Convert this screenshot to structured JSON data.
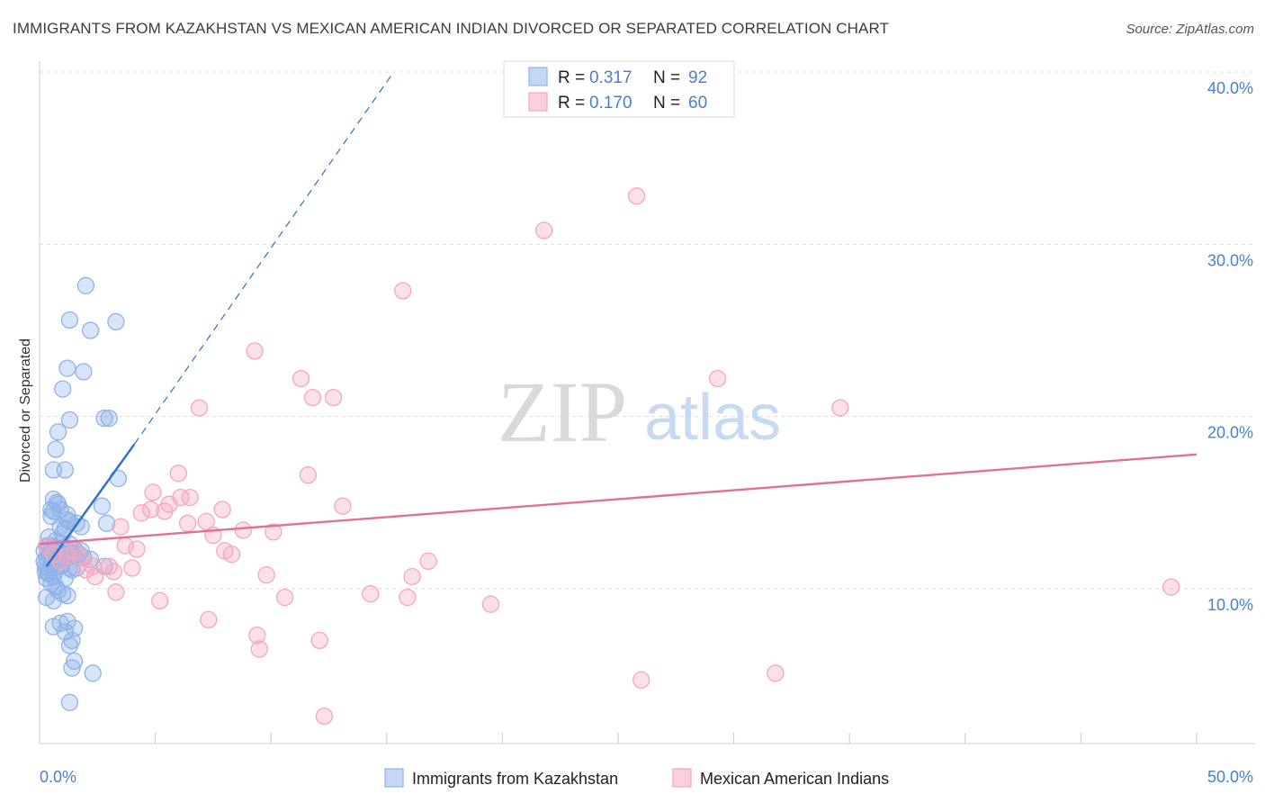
{
  "header": {
    "title": "IMMIGRANTS FROM KAZAKHSTAN VS MEXICAN AMERICAN INDIAN DIVORCED OR SEPARATED CORRELATION CHART",
    "source": "Source: ZipAtlas.com"
  },
  "watermark": {
    "zip": "ZIP",
    "atlas": "atlas"
  },
  "chart_data": {
    "type": "scatter",
    "title": "IMMIGRANTS FROM KAZAKHSTAN VS MEXICAN AMERICAN INDIAN DIVORCED OR SEPARATED CORRELATION CHART",
    "xlabel": "",
    "ylabel": "Divorced or Separated",
    "xlim": [
      0,
      50
    ],
    "ylim": [
      1.5,
      41
    ],
    "x_ticks": [
      {
        "value": 0,
        "label": "0.0%"
      },
      {
        "value": 50,
        "label": "50.0%"
      }
    ],
    "y_ticks": [
      {
        "value": 10,
        "label": "10.0%"
      },
      {
        "value": 20,
        "label": "20.0%"
      },
      {
        "value": 30,
        "label": "30.0%"
      },
      {
        "value": 40,
        "label": "40.0%"
      }
    ],
    "legend_stats": [
      {
        "r_label": "R =",
        "r_value": "0.317",
        "n_label": "N =",
        "n_value": "92"
      },
      {
        "r_label": "R =",
        "r_value": "0.170",
        "n_label": "N =",
        "n_value": "60"
      }
    ],
    "series": [
      {
        "name": "Immigrants from Kazakhstan",
        "color": "#8fb3e8",
        "line_color": "#2e6fce",
        "trend": {
          "x0": 0.3,
          "y0": 11.3,
          "x1": 4.1,
          "y1": 18.4,
          "dash_to_x": 15.3,
          "dash_to_y": 40.0
        },
        "points": [
          [
            0.2,
            12.2
          ],
          [
            0.3,
            11.8
          ],
          [
            0.25,
            11.3
          ],
          [
            0.4,
            12.5
          ],
          [
            0.35,
            10.9
          ],
          [
            0.5,
            12.0
          ],
          [
            0.6,
            11.5
          ],
          [
            0.3,
            10.6
          ],
          [
            0.45,
            11.9
          ],
          [
            0.7,
            12.3
          ],
          [
            0.8,
            11.7
          ],
          [
            0.55,
            12.4
          ],
          [
            0.65,
            11.0
          ],
          [
            0.9,
            12.1
          ],
          [
            1.0,
            11.6
          ],
          [
            0.4,
            13.0
          ],
          [
            0.6,
            14.5
          ],
          [
            0.75,
            15.0
          ],
          [
            0.5,
            14.2
          ],
          [
            1.1,
            13.5
          ],
          [
            1.2,
            14.3
          ],
          [
            0.9,
            14.6
          ],
          [
            1.3,
            13.9
          ],
          [
            1.0,
            13.2
          ],
          [
            0.7,
            12.8
          ],
          [
            0.85,
            12.0
          ],
          [
            1.4,
            12.1
          ],
          [
            1.6,
            11.2
          ],
          [
            1.5,
            11.9
          ],
          [
            1.8,
            12.2
          ],
          [
            0.3,
            9.5
          ],
          [
            0.6,
            9.3
          ],
          [
            0.8,
            9.9
          ],
          [
            1.0,
            9.7
          ],
          [
            1.2,
            9.6
          ],
          [
            0.5,
            10.3
          ],
          [
            0.7,
            10.1
          ],
          [
            1.1,
            10.6
          ],
          [
            1.3,
            11.2
          ],
          [
            0.4,
            10.9
          ],
          [
            0.6,
            10.7
          ],
          [
            0.9,
            11.3
          ],
          [
            0.6,
            7.8
          ],
          [
            0.9,
            8.0
          ],
          [
            1.2,
            8.1
          ],
          [
            1.1,
            7.5
          ],
          [
            1.5,
            7.7
          ],
          [
            1.4,
            7.0
          ],
          [
            1.3,
            6.7
          ],
          [
            1.5,
            5.8
          ],
          [
            1.4,
            5.4
          ],
          [
            2.3,
            5.1
          ],
          [
            1.3,
            3.4
          ],
          [
            0.6,
            16.9
          ],
          [
            0.7,
            18.1
          ],
          [
            0.8,
            19.1
          ],
          [
            1.1,
            16.9
          ],
          [
            1.3,
            19.8
          ],
          [
            1.0,
            21.6
          ],
          [
            1.2,
            22.8
          ],
          [
            1.9,
            22.6
          ],
          [
            1.3,
            25.6
          ],
          [
            2.2,
            25.0
          ],
          [
            3.3,
            25.5
          ],
          [
            2.0,
            27.6
          ],
          [
            2.8,
            19.9
          ],
          [
            3.0,
            19.9
          ],
          [
            3.4,
            16.4
          ],
          [
            2.7,
            14.8
          ],
          [
            2.9,
            13.8
          ],
          [
            1.8,
            13.6
          ],
          [
            1.6,
            13.8
          ],
          [
            1.2,
            14.0
          ],
          [
            0.9,
            13.6
          ],
          [
            0.5,
            14.6
          ],
          [
            0.6,
            15.2
          ],
          [
            0.8,
            14.9
          ],
          [
            1.3,
            12.6
          ],
          [
            1.5,
            12.3
          ],
          [
            1.7,
            12.0
          ],
          [
            1.9,
            11.8
          ],
          [
            2.2,
            11.7
          ],
          [
            2.8,
            11.3
          ],
          [
            1.1,
            12.4
          ],
          [
            0.4,
            12.0
          ],
          [
            0.3,
            12.5
          ],
          [
            0.2,
            11.6
          ],
          [
            0.25,
            11.0
          ],
          [
            0.5,
            11.4
          ],
          [
            0.7,
            11.8
          ],
          [
            0.9,
            12.6
          ],
          [
            1.4,
            11.1
          ]
        ]
      },
      {
        "name": "Mexican American Indians",
        "color": "#f4a6bd",
        "line_color": "#e0709a",
        "trend": {
          "x0": 0.0,
          "y0": 12.6,
          "x1": 50.0,
          "y1": 17.8
        },
        "points": [
          [
            0.3,
            12.5
          ],
          [
            0.6,
            12.0
          ],
          [
            0.9,
            11.6
          ],
          [
            1.2,
            11.9
          ],
          [
            1.5,
            12.2
          ],
          [
            1.8,
            11.8
          ],
          [
            2.0,
            11.1
          ],
          [
            2.3,
            11.3
          ],
          [
            2.4,
            10.7
          ],
          [
            3.0,
            11.3
          ],
          [
            3.2,
            11.0
          ],
          [
            3.3,
            9.8
          ],
          [
            3.5,
            13.6
          ],
          [
            3.7,
            12.5
          ],
          [
            4.0,
            11.2
          ],
          [
            4.2,
            12.3
          ],
          [
            4.4,
            14.4
          ],
          [
            4.8,
            14.6
          ],
          [
            4.9,
            15.6
          ],
          [
            5.2,
            9.3
          ],
          [
            5.6,
            14.9
          ],
          [
            6.0,
            16.7
          ],
          [
            6.1,
            15.3
          ],
          [
            6.4,
            13.8
          ],
          [
            6.5,
            15.3
          ],
          [
            6.9,
            20.5
          ],
          [
            7.2,
            13.9
          ],
          [
            7.3,
            8.2
          ],
          [
            7.5,
            13.1
          ],
          [
            7.9,
            14.6
          ],
          [
            8.0,
            12.2
          ],
          [
            8.3,
            12.0
          ],
          [
            8.8,
            13.4
          ],
          [
            9.3,
            23.8
          ],
          [
            9.4,
            7.3
          ],
          [
            9.5,
            6.5
          ],
          [
            9.8,
            10.8
          ],
          [
            10.1,
            13.3
          ],
          [
            10.6,
            9.5
          ],
          [
            11.3,
            22.2
          ],
          [
            11.6,
            16.6
          ],
          [
            11.8,
            21.1
          ],
          [
            12.1,
            7.0
          ],
          [
            12.3,
            2.6
          ],
          [
            12.7,
            21.1
          ],
          [
            13.1,
            14.8
          ],
          [
            14.3,
            9.7
          ],
          [
            15.7,
            27.3
          ],
          [
            15.9,
            9.5
          ],
          [
            16.1,
            10.7
          ],
          [
            16.8,
            11.6
          ],
          [
            19.5,
            9.1
          ],
          [
            21.8,
            30.8
          ],
          [
            25.8,
            32.8
          ],
          [
            26.0,
            4.7
          ],
          [
            29.3,
            22.2
          ],
          [
            31.8,
            5.1
          ],
          [
            34.6,
            20.5
          ],
          [
            48.9,
            10.1
          ],
          [
            5.4,
            14.5
          ]
        ]
      }
    ]
  }
}
